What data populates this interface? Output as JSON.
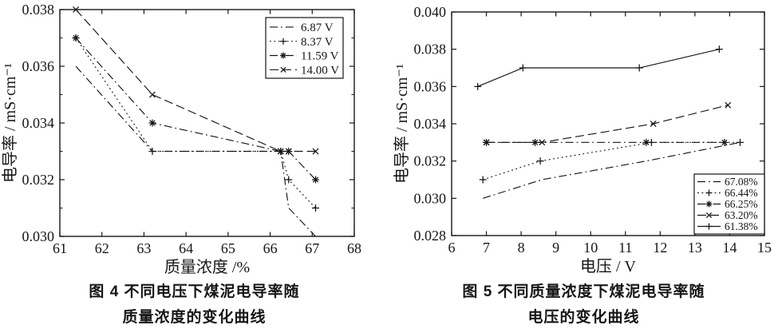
{
  "page": {
    "background": "#ffffff",
    "ink": "#161616"
  },
  "figures": [
    {
      "caption_line1": "图 4  不同电压下煤泥电导率随",
      "caption_line2": "质量浓度的变化曲线"
    },
    {
      "caption_line1": "图 5  不同质量浓度下煤泥电导率随",
      "caption_line2": "电压的变化曲线"
    }
  ],
  "chart_data": [
    {
      "type": "line",
      "title": "图 4 不同电压下煤泥电导率随质量浓度的变化曲线",
      "xlabel": "质量浓度 /%",
      "ylabel": "电导率 / mS·cm⁻¹",
      "xlim": [
        61,
        68
      ],
      "ylim": [
        0.03,
        0.038
      ],
      "xticks": [
        61,
        62,
        63,
        64,
        65,
        66,
        67,
        68
      ],
      "xtick_labels": [
        "61",
        "62",
        "63",
        "64",
        "65",
        "66",
        "67",
        "68"
      ],
      "yticks": [
        0.03,
        0.032,
        0.034,
        0.036,
        0.038
      ],
      "ytick_labels": [
        "0.030",
        "0.032",
        "0.034",
        "0.036",
        "0.038"
      ],
      "y_minor_step": 0.001,
      "grid": false,
      "legend_position": "top-right",
      "series": [
        {
          "name": "6.87 V",
          "line": "dashdot",
          "marker": "none",
          "x": [
            61.38,
            63.2,
            66.25,
            66.44,
            67.08
          ],
          "y": [
            0.036,
            0.033,
            0.033,
            0.031,
            0.03
          ]
        },
        {
          "name": "8.37 V",
          "line": "dotted",
          "marker": "plus",
          "x": [
            61.38,
            63.2,
            66.25,
            66.44,
            67.08
          ],
          "y": [
            0.037,
            0.033,
            0.033,
            0.032,
            0.031
          ]
        },
        {
          "name": "11.59 V",
          "line": "dashdot",
          "marker": "asterisk",
          "x": [
            61.38,
            63.2,
            66.25,
            66.44,
            67.08
          ],
          "y": [
            0.037,
            0.034,
            0.033,
            0.033,
            0.032
          ]
        },
        {
          "name": "14.00 V",
          "line": "dashed",
          "marker": "x",
          "x": [
            61.38,
            63.2,
            66.25,
            66.44,
            67.08
          ],
          "y": [
            0.038,
            0.035,
            0.033,
            0.033,
            0.033
          ]
        }
      ]
    },
    {
      "type": "line",
      "title": "图 5 不同质量浓度下煤泥电导率随电压的变化曲线",
      "xlabel": "电压 / V",
      "ylabel": "电导率 / mS·cm⁻¹",
      "xlim": [
        6,
        15
      ],
      "ylim": [
        0.028,
        0.04
      ],
      "xticks": [
        6,
        7,
        8,
        9,
        10,
        11,
        12,
        13,
        14,
        15
      ],
      "xtick_labels": [
        "6",
        "7",
        "8",
        "9",
        "10",
        "11",
        "12",
        "13",
        "14",
        "15"
      ],
      "yticks": [
        0.028,
        0.03,
        0.032,
        0.034,
        0.036,
        0.038,
        0.04
      ],
      "ytick_labels": [
        "0.028",
        "0.030",
        "0.032",
        "0.034",
        "0.036",
        "0.038",
        "0.040"
      ],
      "y_minor_step": null,
      "grid": false,
      "legend_position": "bottom-right",
      "series": [
        {
          "name": "67.08%",
          "line": "dashdot",
          "marker": "none",
          "x": [
            6.9,
            8.6,
            11.6,
            14.3
          ],
          "y": [
            0.03,
            0.031,
            0.032,
            0.033
          ]
        },
        {
          "name": "66.44%",
          "line": "dotted",
          "marker": "plus",
          "x": [
            6.9,
            8.55,
            11.75,
            14.3
          ],
          "y": [
            0.031,
            0.032,
            0.033,
            0.033
          ]
        },
        {
          "name": "66.25%",
          "line": "dashdot",
          "marker": "asterisk",
          "x": [
            7.0,
            8.4,
            11.6,
            13.85
          ],
          "y": [
            0.033,
            0.033,
            0.033,
            0.033
          ]
        },
        {
          "name": "63.20%",
          "line": "dashed",
          "marker": "x",
          "x": [
            7.0,
            8.6,
            11.8,
            13.95
          ],
          "y": [
            0.033,
            0.033,
            0.034,
            0.035
          ]
        },
        {
          "name": "61.38%",
          "line": "solid",
          "marker": "plus",
          "x": [
            6.75,
            8.05,
            11.4,
            13.7
          ],
          "y": [
            0.036,
            0.037,
            0.037,
            0.038
          ]
        }
      ]
    }
  ]
}
